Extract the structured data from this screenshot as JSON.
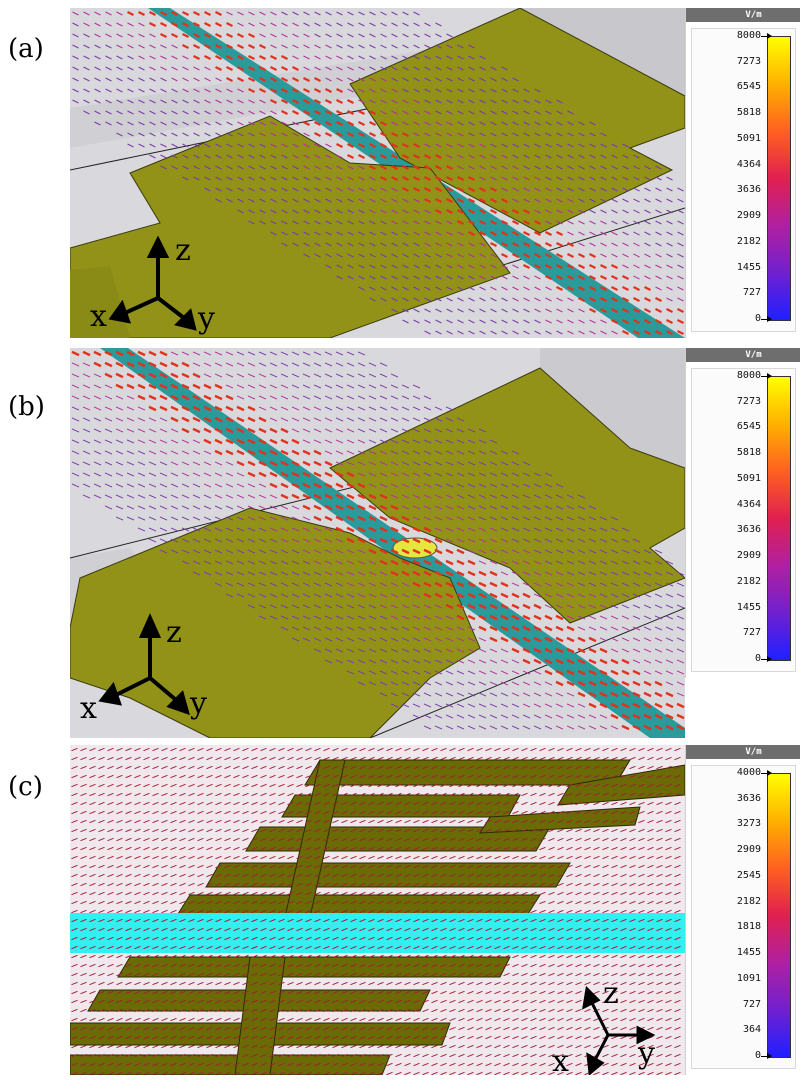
{
  "panels": [
    {
      "label": "(a)",
      "unit": "V/m",
      "ticks": [
        "8000",
        "7273",
        "6545",
        "5818",
        "5091",
        "4364",
        "3636",
        "2909",
        "2182",
        "1455",
        "727",
        "0"
      ],
      "axes": {
        "z": "z",
        "x": "x",
        "y": "y"
      },
      "colors": {
        "pad": "#8f8f1a",
        "ground": "#d6d6da",
        "strip": "#1f8f8f",
        "arrow": "#7a2a9a",
        "hot": "#e2321e"
      }
    },
    {
      "label": "(b)",
      "unit": "V/m",
      "ticks": [
        "8000",
        "7273",
        "6545",
        "5818",
        "5091",
        "4364",
        "3636",
        "2909",
        "2182",
        "1455",
        "727",
        "0"
      ],
      "axes": {
        "z": "z",
        "x": "x",
        "y": "y"
      },
      "colors": {
        "pad": "#8f8f1a",
        "ground": "#d6d6da",
        "strip": "#1f8f8f",
        "arrow": "#7a2a9a",
        "hot": "#e2321e"
      }
    },
    {
      "label": "(c)",
      "unit": "V/m",
      "ticks": [
        "4000",
        "3636",
        "3273",
        "2909",
        "2545",
        "2182",
        "1818",
        "1455",
        "1091",
        "727",
        "364",
        "0"
      ],
      "axes": {
        "z": "z",
        "x": "x",
        "y": "y"
      },
      "colors": {
        "pad": "#6b6b06",
        "ground": "#f2e6ee",
        "strip": "#33f2f2",
        "arrow": "#a0103a",
        "hot": "#d81e1e"
      }
    }
  ],
  "colorbar_gradient": [
    "#ffff00",
    "#ffb000",
    "#ff6020",
    "#e02050",
    "#b020a0",
    "#7020d0",
    "#2020ff"
  ]
}
